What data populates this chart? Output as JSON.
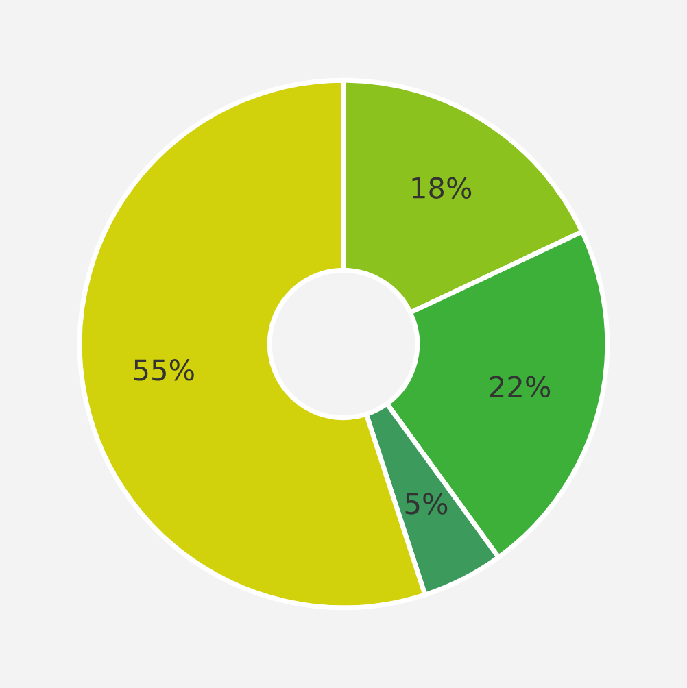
{
  "chart_data": {
    "type": "donut",
    "categories": [
      null,
      null,
      null,
      null
    ],
    "values": [
      18,
      22,
      5,
      55
    ],
    "colors": [
      "#8cc21e",
      "#3db03a",
      "#3b9a5c",
      "#d2d20c"
    ],
    "value_labels": [
      "18%",
      "22%",
      "5%",
      "55%"
    ]
  }
}
